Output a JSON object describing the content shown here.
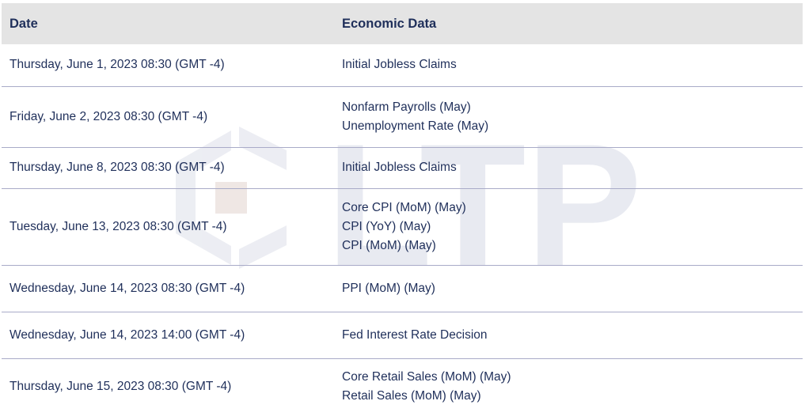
{
  "table": {
    "headers": {
      "date": "Date",
      "data": "Economic Data"
    },
    "rows": [
      {
        "date": "Thursday, June 1, 2023 08:30 (GMT -4)",
        "events": [
          "Initial Jobless Claims"
        ]
      },
      {
        "date": "Friday, June 2, 2023 08:30 (GMT -4)",
        "events": [
          "Nonfarm Payrolls (May)",
          "Unemployment Rate (May)"
        ]
      },
      {
        "date": "Thursday, June 8, 2023 08:30 (GMT -4)",
        "events": [
          "Initial Jobless Claims"
        ]
      },
      {
        "date": "Tuesday, June 13, 2023 08:30 (GMT -4)",
        "events": [
          "Core CPI (MoM) (May)",
          "CPI (YoY) (May)",
          "CPI (MoM) (May)"
        ]
      },
      {
        "date": "Wednesday, June 14, 2023 08:30 (GMT -4)",
        "events": [
          "PPI (MoM) (May)"
        ]
      },
      {
        "date": "Wednesday, June 14, 2023 14:00 (GMT -4)",
        "events": [
          "Fed Interest Rate Decision"
        ]
      },
      {
        "date": "Thursday, June 15, 2023 08:30 (GMT -4)",
        "events": [
          "Core Retail Sales (MoM) (May)",
          "Retail Sales (MoM) (May)"
        ]
      }
    ]
  },
  "watermark": {
    "text": "LTP",
    "color": "#dfe1ea"
  },
  "colors": {
    "text": "#1f2f5a",
    "header_bg": "#e4e4e4",
    "divider": "#a9abc8"
  }
}
